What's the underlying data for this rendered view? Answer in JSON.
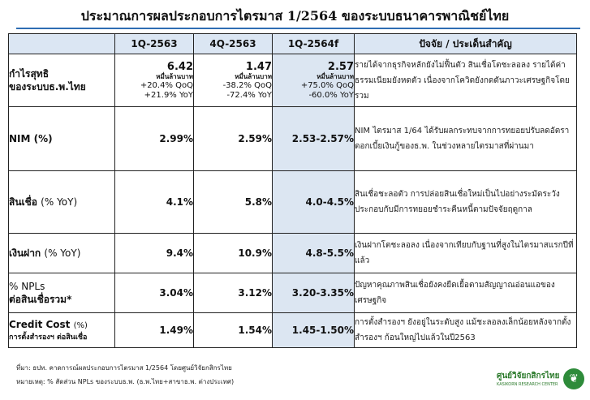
{
  "title": "ประมาณการผลประกอบการไตรมาส 1/2564 ของระบบธนาคารพาณิชย์ไทย",
  "header": {
    "c1": "1Q-2563",
    "c2": "4Q-2563",
    "c3": "1Q-2564f",
    "c4": "ปัจจัย / ประเด็นสำคัญ"
  },
  "rows": {
    "profit": {
      "label1": "กำไรสุทธิ",
      "label2": "ของระบบธ.พ.ไทย",
      "c1": {
        "value": "6.42",
        "unit": "หมื่นล้านบาท",
        "qoq": "+20.4% QoQ",
        "yoy": "+21.9% YoY"
      },
      "c2": {
        "value": "1.47",
        "unit": "หมื่นล้านบาท",
        "qoq": "-38.2% QoQ",
        "yoy": "-72.4% YoY"
      },
      "c3": {
        "value": "2.57",
        "unit": "หมื่นล้านบาท",
        "qoq": "+75.0% QoQ",
        "yoy": "-60.0% YoY"
      },
      "factor": "รายได้จากธุรกิจหลักยังไม่ฟื้นตัว สินเชื่อโตชะลอลง รายได้ค่าธรรมเนียมยังหดตัว เนื่องจากโควิดยังกดดันภาวะเศรษฐกิจโดยรวม"
    },
    "nim": {
      "label": "NIM (%)",
      "c1": "2.99%",
      "c2": "2.59%",
      "c3": "2.53-2.57%",
      "factor": "NIM ไตรมาส 1/64 ได้รับผลกระทบจากการทยอยปรับลดอัตราดอกเบี้ยเงินกู้ของธ.พ. ในช่วงหลายไตรมาสที่ผ่านมา"
    },
    "loan": {
      "label": "สินเชื่อ",
      "label_sub": "(% YoY)",
      "c1": "4.1%",
      "c2": "5.8%",
      "c3": "4.0-4.5%",
      "factor": "สินเชื่อชะลอตัว การปล่อยสินเชื่อใหม่เป็นไปอย่างระมัดระวัง ประกอบกับมีการทยอยชำระคืนหนี้ตามปัจจัยฤดูกาล"
    },
    "deposit": {
      "label": "เงินฝาก",
      "label_sub": "(% YoY)",
      "c1": "9.4%",
      "c2": "10.9%",
      "c3": "4.8-5.5%",
      "factor": "เงินฝากโตชะลอลง เนื่องจากเทียบกับฐานที่สูงในไตรมาสแรกปีที่แล้ว"
    },
    "npl": {
      "label1": "% NPLs",
      "label2": "ต่อสินเชื่อรวม*",
      "c1": "3.04%",
      "c2": "3.12%",
      "c3": "3.20-3.35%",
      "factor": "ปัญหาคุณภาพสินเชื่อยังคงยืดเยื้อตามสัญญาณอ่อนแอของเศรษฐกิจ"
    },
    "credit": {
      "label": "Credit Cost",
      "label_sub": "(%)",
      "label_small": "การตั้งสำรองฯ ต่อสินเชื่อ",
      "c1": "1.49%",
      "c2": "1.54%",
      "c3": "1.45-1.50%",
      "factor": "การตั้งสำรองฯ ยังอยู่ในระดับสูง แม้ชะลอลงเล็กน้อยหลังจากตั้งสำรองฯ ก้อนใหญ่ไปแล้วในปี2563"
    }
  },
  "footnotes": {
    "source": "ที่มา: ธปท. คาดการณ์ผลประกอบการไตรมาส 1/2564 โดยศูนย์วิจัยกสิกรไทย",
    "note": "หมายเหตุ: % สัดส่วน NPLs ของระบบธ.พ. (ธ.พ.ไทย+สาขาธ.พ. ต่างประเทศ)"
  },
  "logo": {
    "name": "ศูนย์วิจัยกสิกรไทย",
    "sub": "KASIKORN RESEARCH CENTER",
    "icon": "kbank-leaf-icon"
  },
  "colors": {
    "header_bg": "#dbe6f3",
    "forecast_bg": "#dce6f2",
    "title_line": "#2e6db3",
    "logo_green": "#2e8b3a"
  }
}
